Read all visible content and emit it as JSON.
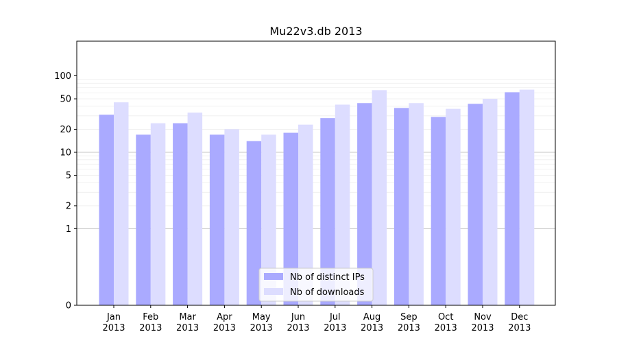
{
  "chart_data": {
    "type": "bar",
    "title": "Mu22v3.db 2013",
    "xlabel": "",
    "ylabel": "",
    "scale": "symlog",
    "ylim": [
      0,
      120
    ],
    "yticks": [
      0,
      1,
      2,
      5,
      10,
      20,
      50,
      100
    ],
    "major_gridlines": [
      1,
      10
    ],
    "minor_grid": true,
    "categories": [
      {
        "month": "Jan",
        "year": "2013"
      },
      {
        "month": "Feb",
        "year": "2013"
      },
      {
        "month": "Mar",
        "year": "2013"
      },
      {
        "month": "Apr",
        "year": "2013"
      },
      {
        "month": "May",
        "year": "2013"
      },
      {
        "month": "Jun",
        "year": "2013"
      },
      {
        "month": "Jul",
        "year": "2013"
      },
      {
        "month": "Aug",
        "year": "2013"
      },
      {
        "month": "Sep",
        "year": "2013"
      },
      {
        "month": "Oct",
        "year": "2013"
      },
      {
        "month": "Nov",
        "year": "2013"
      },
      {
        "month": "Dec",
        "year": "2013"
      }
    ],
    "series": [
      {
        "name": "Nb of distinct IPs",
        "color": "#aaaaff",
        "values": [
          31,
          17,
          24,
          17,
          14,
          18,
          28,
          44,
          38,
          29,
          43,
          61
        ]
      },
      {
        "name": "Nb of downloads",
        "color": "#ddddff",
        "values": [
          45,
          24,
          33,
          20,
          17,
          23,
          42,
          65,
          44,
          37,
          50,
          66
        ]
      }
    ],
    "legend": "bottom-center"
  }
}
